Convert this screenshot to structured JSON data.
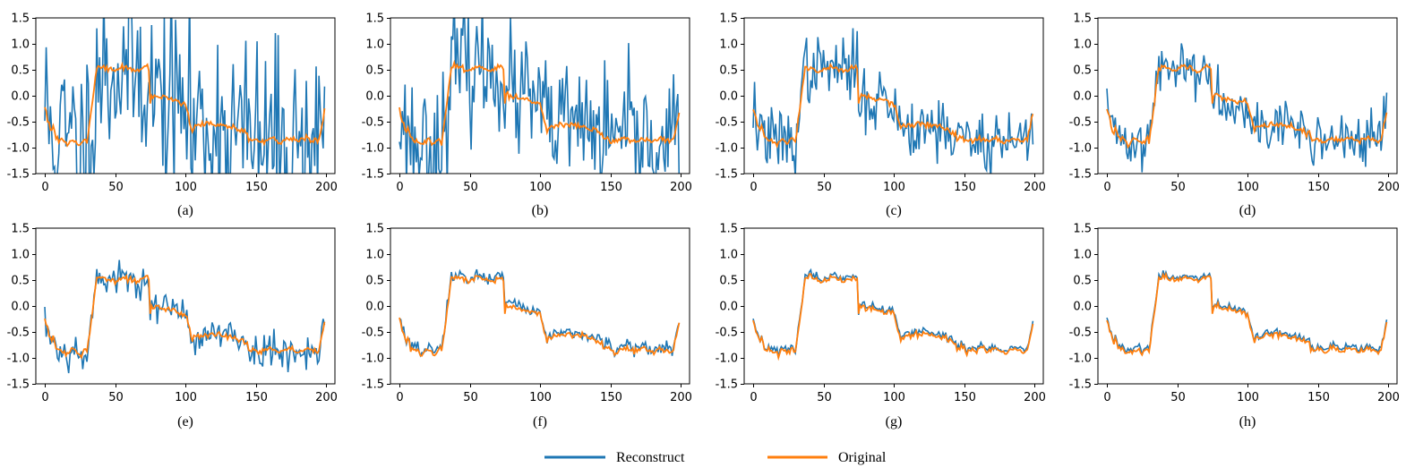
{
  "legend": {
    "reconstruct_label": "Reconstruct",
    "original_label": "Original"
  },
  "colors": {
    "reconstruct": "#1f77b4",
    "original": "#ff7f0e"
  },
  "chart_data": [
    {
      "id": "a",
      "caption": "(a)",
      "type": "line",
      "noise": 0.95,
      "seed": 11,
      "xlim": [
        0,
        200
      ],
      "ylim": [
        -1.5,
        1.5
      ],
      "xticks": [
        "0",
        "50",
        "100",
        "150",
        "200"
      ],
      "yticks": [
        "1.5",
        "1.0",
        "0.5",
        "0.0",
        "-0.5",
        "-1.0",
        "-1.5"
      ],
      "series": [
        "Reconstruct",
        "Original"
      ]
    },
    {
      "id": "b",
      "caption": "(b)",
      "type": "line",
      "noise": 0.6,
      "seed": 23,
      "xlim": [
        0,
        200
      ],
      "ylim": [
        -1.5,
        1.5
      ],
      "xticks": [
        "0",
        "50",
        "100",
        "150",
        "200"
      ],
      "yticks": [
        "1.5",
        "1.0",
        "0.5",
        "0.0",
        "-0.5",
        "-1.0",
        "-1.5"
      ],
      "series": [
        "Reconstruct",
        "Original"
      ]
    },
    {
      "id": "c",
      "caption": "(c)",
      "type": "line",
      "noise": 0.32,
      "seed": 37,
      "xlim": [
        0,
        200
      ],
      "ylim": [
        -1.5,
        1.5
      ],
      "xticks": [
        "0",
        "50",
        "100",
        "150",
        "200"
      ],
      "yticks": [
        "1.5",
        "1.0",
        "0.5",
        "0.0",
        "-0.5",
        "-1.0",
        "-1.5"
      ],
      "series": [
        "Reconstruct",
        "Original"
      ]
    },
    {
      "id": "d",
      "caption": "(d)",
      "type": "line",
      "noise": 0.24,
      "seed": 41,
      "xlim": [
        0,
        200
      ],
      "ylim": [
        -1.5,
        1.5
      ],
      "xticks": [
        "0",
        "50",
        "100",
        "150",
        "200"
      ],
      "yticks": [
        "1.5",
        "1.0",
        "0.5",
        "0.0",
        "-0.5",
        "-1.0",
        "-1.5"
      ],
      "series": [
        "Reconstruct",
        "Original"
      ]
    },
    {
      "id": "e",
      "caption": "(e)",
      "type": "line",
      "noise": 0.16,
      "seed": 53,
      "xlim": [
        0,
        200
      ],
      "ylim": [
        -1.5,
        1.5
      ],
      "xticks": [
        "0",
        "50",
        "100",
        "150",
        "200"
      ],
      "yticks": [
        "1.5",
        "1.0",
        "0.5",
        "0.0",
        "-0.5",
        "-1.0",
        "-1.5"
      ],
      "series": [
        "Reconstruct",
        "Original"
      ]
    },
    {
      "id": "f",
      "caption": "(f)",
      "type": "line",
      "noise": 0.055,
      "seed": 67,
      "xlim": [
        0,
        200
      ],
      "ylim": [
        -1.5,
        1.5
      ],
      "xticks": [
        "0",
        "50",
        "100",
        "150",
        "200"
      ],
      "yticks": [
        "1.5",
        "1.0",
        "0.5",
        "0.0",
        "-0.5",
        "-1.0",
        "-1.5"
      ],
      "series": [
        "Reconstruct",
        "Original"
      ]
    },
    {
      "id": "g",
      "caption": "(g)",
      "type": "line",
      "noise": 0.03,
      "seed": 71,
      "xlim": [
        0,
        200
      ],
      "ylim": [
        -1.5,
        1.5
      ],
      "xticks": [
        "0",
        "50",
        "100",
        "150",
        "200"
      ],
      "yticks": [
        "1.5",
        "1.0",
        "0.5",
        "0.0",
        "-0.5",
        "-1.0",
        "-1.5"
      ],
      "series": [
        "Reconstruct",
        "Original"
      ]
    },
    {
      "id": "h",
      "caption": "(h)",
      "type": "line",
      "noise": 0.02,
      "seed": 83,
      "xlim": [
        0,
        200
      ],
      "ylim": [
        -1.5,
        1.5
      ],
      "xticks": [
        "0",
        "50",
        "100",
        "150",
        "200"
      ],
      "yticks": [
        "1.5",
        "1.0",
        "0.5",
        "0.0",
        "-0.5",
        "-1.0",
        "-1.5"
      ],
      "series": [
        "Reconstruct",
        "Original"
      ]
    }
  ]
}
